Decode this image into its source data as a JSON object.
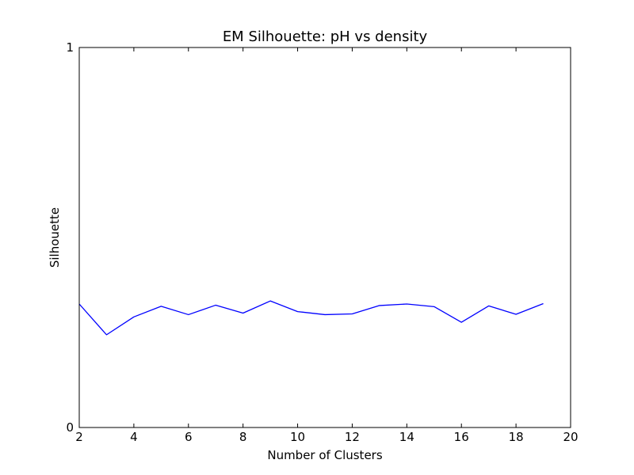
{
  "chart_data": {
    "type": "line",
    "title": "EM Silhouette: pH vs density",
    "xlabel": "Number of Clusters",
    "ylabel": "Silhouette",
    "xlim": [
      2,
      20
    ],
    "ylim": [
      0,
      1
    ],
    "x_ticks": [
      2,
      4,
      6,
      8,
      10,
      12,
      14,
      16,
      18,
      20
    ],
    "y_ticks": [
      0,
      1
    ],
    "grid": false,
    "series": [
      {
        "color": "#0000ff",
        "x": [
          2,
          3,
          4,
          5,
          6,
          7,
          8,
          9,
          10,
          11,
          12,
          13,
          14,
          15,
          16,
          17,
          18,
          19
        ],
        "y": [
          0.325,
          0.244,
          0.291,
          0.319,
          0.297,
          0.322,
          0.301,
          0.333,
          0.305,
          0.297,
          0.299,
          0.321,
          0.325,
          0.318,
          0.277,
          0.32,
          0.298,
          0.326
        ]
      }
    ]
  }
}
